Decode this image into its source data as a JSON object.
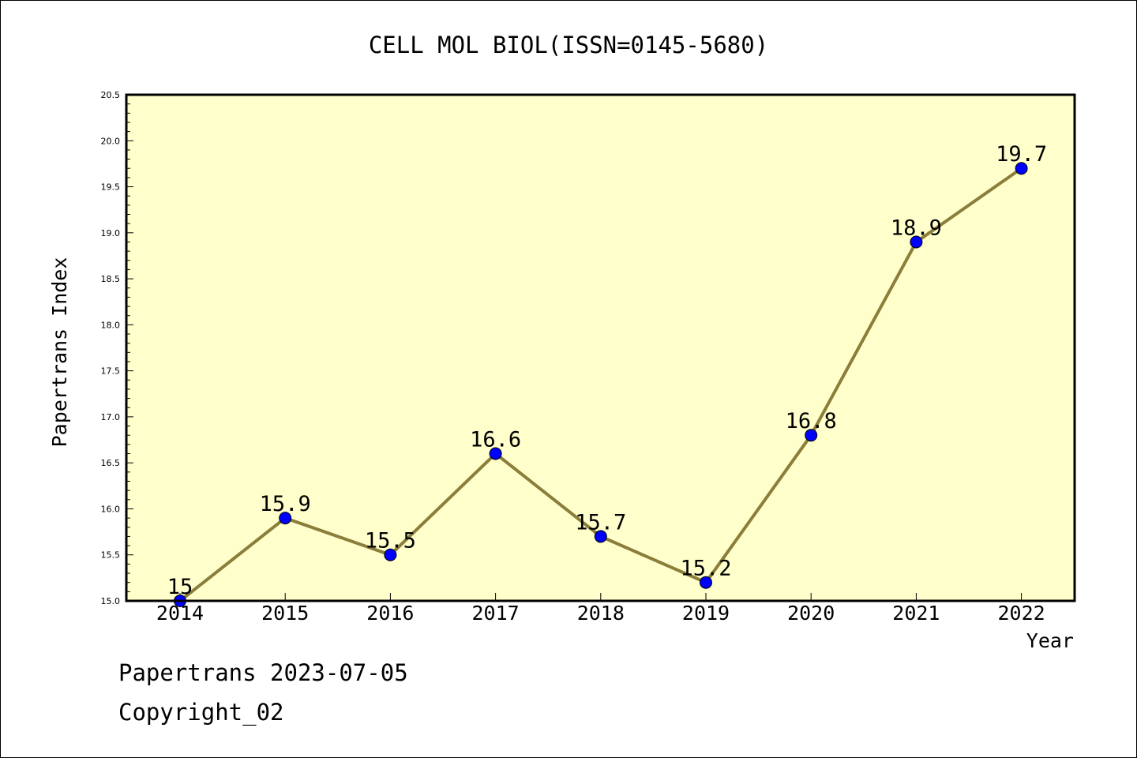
{
  "chart_data": {
    "type": "line",
    "title": "CELL MOL BIOL(ISSN=0145-5680)",
    "xlabel": "Year",
    "ylabel": "Papertrans Index",
    "categories": [
      "2014",
      "2015",
      "2016",
      "2017",
      "2018",
      "2019",
      "2020",
      "2021",
      "2022"
    ],
    "series": [
      {
        "values": [
          15,
          15.9,
          15.5,
          16.6,
          15.7,
          15.2,
          16.8,
          18.9,
          19.7
        ],
        "data_labels": [
          "15",
          "15.9",
          "15.5",
          "16.6",
          "15.7",
          "15.2",
          "16.8",
          "18.9",
          "19.7"
        ]
      }
    ],
    "ylim": [
      15.0,
      20.5
    ],
    "yticks": [
      "15.0",
      "15.5",
      "16.0",
      "16.5",
      "17.0",
      "17.5",
      "18.0",
      "18.5",
      "19.0",
      "19.5",
      "20.0",
      "20.5"
    ],
    "grid": false,
    "legend": "none"
  },
  "colors": {
    "plot_background": "#ffffcc",
    "line": "#8b7d3a",
    "marker": "#0000ff",
    "axes": "#000000"
  },
  "footer": {
    "date_line": "Papertrans 2023-07-05",
    "copyright": "Copyright_02"
  }
}
